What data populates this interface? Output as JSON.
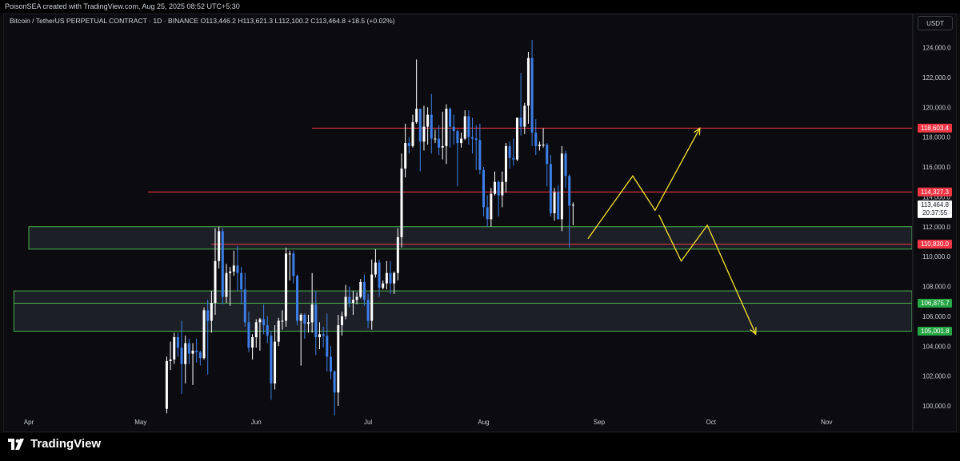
{
  "header": {
    "credit": "PoisonSEA created with TradingView.com, Aug 25, 2025 08:52 UTC+5:30",
    "symbol": "Bitcoin / TetherUS PERPETUAL CONTRACT · 1D · BINANCE",
    "ohlc": "O113,446.2 H113,621.3 L112,100.2 C113,464.8 +18.5 (+0.02%)",
    "currency": "USDT"
  },
  "brand": {
    "name": "TradingView"
  },
  "colors": {
    "up": "#ffffff",
    "down": "#3d7ee8",
    "resistance_line": "#f23645",
    "zone_border": "#4caf50",
    "zone_fill": "#23262f",
    "projection": "#f5e12c",
    "label_red": "#f23645",
    "label_green": "#26a644"
  },
  "chart_data": {
    "type": "candlestick",
    "title": "Bitcoin / TetherUS PERPETUAL CONTRACT · 1D · BINANCE",
    "x_ticks": [
      "Apr",
      "May",
      "Jun",
      "Jul",
      "Aug",
      "Sep",
      "Oct",
      "Nov"
    ],
    "y_ticks": [
      "100,000.0",
      "102,000.0",
      "104,000.0",
      "106,000.0",
      "108,000.0",
      "110,000.0",
      "112,000.0",
      "114,000.0",
      "116,000.0",
      "118,000.0",
      "120,000.0",
      "122,000.0",
      "124,000.0"
    ],
    "y_range": [
      99500,
      125700
    ],
    "price_labels": [
      {
        "text": "118,603.4",
        "value": 118603.4,
        "color": "red"
      },
      {
        "text": "114,327.3",
        "value": 114327.3,
        "color": "red"
      },
      {
        "text": "113,464.8",
        "value": 113464.8,
        "color": "white",
        "countdown": "20:37:55"
      },
      {
        "text": "110,830.0",
        "value": 110830.0,
        "color": "red"
      },
      {
        "text": "106,875.7",
        "value": 106875.7,
        "color": "green"
      },
      {
        "text": "105,001.8",
        "value": 105001.8,
        "color": "green"
      }
    ],
    "horizontal_lines": [
      {
        "value": 118603.4,
        "start_date": "2025-06-16"
      },
      {
        "value": 114327.3,
        "start_date": "2025-05-03"
      },
      {
        "value": 110830.0,
        "start_date": "2025-05-20"
      }
    ],
    "zones": [
      {
        "low": 110500,
        "high": 112000,
        "start_date": "2025-04-01"
      },
      {
        "low": 106875.7,
        "high": 107700,
        "start_date": "2025-03-28"
      },
      {
        "low": 105001.8,
        "high": 106875.7,
        "start_date": "2025-03-28"
      }
    ],
    "projection_path": [
      [
        "2025-08-29",
        111200
      ],
      [
        "2025-09-10",
        115400
      ],
      [
        "2025-09-16",
        113100
      ],
      [
        "2025-09-28",
        118600
      ]
    ],
    "projection_path_2": [
      [
        "2025-09-17",
        112800
      ],
      [
        "2025-09-23",
        109700
      ],
      [
        "2025-09-30",
        112100
      ],
      [
        "2025-10-13",
        104800
      ]
    ],
    "candles": [
      [
        "2025-05-08",
        99800,
        103300,
        99500,
        103000
      ],
      [
        "2025-05-09",
        103000,
        104300,
        102400,
        103100
      ],
      [
        "2025-05-10",
        103100,
        104900,
        102800,
        104600
      ],
      [
        "2025-05-11",
        104600,
        104900,
        103300,
        103900
      ],
      [
        "2025-05-12",
        103900,
        105700,
        100800,
        102800
      ],
      [
        "2025-05-13",
        102800,
        104700,
        101500,
        104200
      ],
      [
        "2025-05-14",
        104200,
        104500,
        102800,
        103500
      ],
      [
        "2025-05-15",
        103500,
        104200,
        101400,
        103700
      ],
      [
        "2025-05-16",
        103700,
        104500,
        102900,
        103600
      ],
      [
        "2025-05-17",
        103600,
        103700,
        102700,
        103200
      ],
      [
        "2025-05-18",
        103200,
        106600,
        103100,
        106400
      ],
      [
        "2025-05-19",
        106400,
        107100,
        102100,
        105700
      ],
      [
        "2025-05-20",
        105700,
        107700,
        104900,
        106900
      ],
      [
        "2025-05-21",
        106900,
        111900,
        106100,
        109700
      ],
      [
        "2025-05-22",
        109700,
        112000,
        109200,
        111700
      ],
      [
        "2025-05-23",
        111700,
        111900,
        106800,
        107300
      ],
      [
        "2025-05-24",
        107300,
        109500,
        106900,
        108900
      ],
      [
        "2025-05-25",
        108900,
        109300,
        106700,
        109000
      ],
      [
        "2025-05-26",
        109000,
        110400,
        108700,
        109400
      ],
      [
        "2025-05-27",
        109400,
        110700,
        107700,
        108900
      ],
      [
        "2025-05-28",
        108900,
        109300,
        106800,
        107800
      ],
      [
        "2025-05-29",
        107800,
        108900,
        105300,
        105600
      ],
      [
        "2025-05-30",
        105600,
        106300,
        103600,
        103900
      ],
      [
        "2025-05-31",
        103900,
        104800,
        103100,
        104600
      ],
      [
        "2025-06-01",
        104600,
        105800,
        103900,
        105600
      ],
      [
        "2025-06-02",
        105600,
        105900,
        103700,
        105800
      ],
      [
        "2025-06-03",
        105800,
        106800,
        104800,
        105400
      ],
      [
        "2025-06-04",
        105400,
        106000,
        104200,
        104700
      ],
      [
        "2025-06-05",
        104700,
        105000,
        100400,
        101500
      ],
      [
        "2025-06-06",
        101500,
        105400,
        101100,
        104300
      ],
      [
        "2025-06-07",
        104300,
        105900,
        104000,
        105700
      ],
      [
        "2025-06-08",
        105700,
        106400,
        105100,
        105700
      ],
      [
        "2025-06-09",
        105700,
        110600,
        105300,
        110200
      ],
      [
        "2025-06-10",
        110200,
        110400,
        108400,
        110200
      ],
      [
        "2025-06-11",
        110200,
        110400,
        108200,
        108700
      ],
      [
        "2025-06-12",
        108700,
        108800,
        105400,
        105700
      ],
      [
        "2025-06-13",
        105700,
        106200,
        102700,
        106100
      ],
      [
        "2025-06-14",
        106100,
        106200,
        104500,
        105500
      ],
      [
        "2025-06-15",
        105500,
        106100,
        104900,
        105600
      ],
      [
        "2025-06-16",
        105600,
        108900,
        104900,
        106800
      ],
      [
        "2025-06-17",
        106800,
        107700,
        103400,
        104600
      ],
      [
        "2025-06-18",
        104600,
        105600,
        103800,
        104800
      ],
      [
        "2025-06-19",
        104800,
        105300,
        103900,
        104700
      ],
      [
        "2025-06-20",
        104700,
        106200,
        102300,
        103300
      ],
      [
        "2025-06-21",
        103300,
        104000,
        101800,
        102300
      ],
      [
        "2025-06-22",
        102300,
        102400,
        98200,
        100900
      ],
      [
        "2025-06-23",
        100900,
        106100,
        100000,
        105400
      ],
      [
        "2025-06-24",
        105400,
        106300,
        104700,
        106000
      ],
      [
        "2025-06-25",
        106000,
        108100,
        105800,
        107300
      ],
      [
        "2025-06-26",
        107300,
        108000,
        106600,
        106900
      ],
      [
        "2025-06-27",
        106900,
        107700,
        106100,
        107100
      ],
      [
        "2025-06-28",
        107100,
        107600,
        106800,
        107300
      ],
      [
        "2025-06-29",
        107300,
        108500,
        107200,
        108300
      ],
      [
        "2025-06-30",
        108300,
        108800,
        106700,
        107100
      ],
      [
        "2025-07-01",
        107100,
        107500,
        105200,
        105700
      ],
      [
        "2025-07-02",
        105700,
        109800,
        105100,
        108800
      ],
      [
        "2025-07-03",
        108800,
        110500,
        108600,
        109600
      ],
      [
        "2025-07-04",
        109600,
        109800,
        107300,
        107900
      ],
      [
        "2025-07-05",
        107900,
        108400,
        107800,
        108200
      ],
      [
        "2025-07-06",
        108200,
        109700,
        107800,
        108900
      ],
      [
        "2025-07-07",
        108900,
        109700,
        107500,
        108200
      ],
      [
        "2025-07-08",
        108200,
        109000,
        107500,
        108900
      ],
      [
        "2025-07-09",
        108900,
        111900,
        108400,
        111300
      ],
      [
        "2025-07-10",
        111300,
        116900,
        110600,
        115900
      ],
      [
        "2025-07-11",
        115900,
        118900,
        115300,
        117600
      ],
      [
        "2025-07-12",
        117600,
        118000,
        116900,
        117400
      ],
      [
        "2025-07-13",
        117400,
        119500,
        117300,
        119000
      ],
      [
        "2025-07-14",
        119000,
        123200,
        118900,
        119900
      ],
      [
        "2025-07-15",
        119900,
        119900,
        115700,
        117700
      ],
      [
        "2025-07-16",
        117700,
        120100,
        117100,
        118700
      ],
      [
        "2025-07-17",
        118700,
        120000,
        117500,
        119500
      ],
      [
        "2025-07-18",
        119500,
        120900,
        116900,
        117900
      ],
      [
        "2025-07-19",
        117900,
        118500,
        117600,
        117900
      ],
      [
        "2025-07-20",
        117900,
        118800,
        116800,
        117300
      ],
      [
        "2025-07-21",
        117300,
        119700,
        116500,
        117400
      ],
      [
        "2025-07-22",
        117400,
        120200,
        116200,
        119900
      ],
      [
        "2025-07-23",
        119900,
        120000,
        117300,
        118700
      ],
      [
        "2025-07-24",
        118700,
        119500,
        117500,
        118400
      ],
      [
        "2025-07-25",
        118400,
        118500,
        114700,
        117600
      ],
      [
        "2025-07-26",
        117600,
        118300,
        117300,
        117900
      ],
      [
        "2025-07-27",
        117900,
        119800,
        117800,
        119400
      ],
      [
        "2025-07-28",
        119400,
        119800,
        117500,
        118000
      ],
      [
        "2025-07-29",
        118000,
        119300,
        116900,
        117900
      ],
      [
        "2025-07-30",
        117900,
        118800,
        115800,
        117800
      ],
      [
        "2025-07-31",
        117800,
        118900,
        115500,
        115800
      ],
      [
        "2025-08-01",
        115800,
        116000,
        112700,
        113300
      ],
      [
        "2025-08-02",
        113300,
        114100,
        112000,
        112500
      ],
      [
        "2025-08-03",
        112500,
        114600,
        112000,
        114200
      ],
      [
        "2025-08-04",
        114200,
        115700,
        114100,
        115000
      ],
      [
        "2025-08-05",
        115000,
        115100,
        112700,
        114100
      ],
      [
        "2025-08-06",
        114100,
        115700,
        113300,
        115000
      ],
      [
        "2025-08-07",
        115000,
        117600,
        114300,
        117400
      ],
      [
        "2025-08-08",
        117400,
        117700,
        115900,
        116600
      ],
      [
        "2025-08-09",
        116600,
        117900,
        116100,
        116500
      ],
      [
        "2025-08-10",
        116500,
        119300,
        116400,
        119300
      ],
      [
        "2025-08-11",
        119300,
        122300,
        118100,
        118700
      ],
      [
        "2025-08-12",
        118700,
        120300,
        118200,
        120100
      ],
      [
        "2025-08-13",
        120100,
        123700,
        118900,
        123300
      ],
      [
        "2025-08-14",
        123300,
        124500,
        117400,
        118300
      ],
      [
        "2025-08-15",
        118300,
        119200,
        116800,
        117400
      ],
      [
        "2025-08-16",
        117400,
        117700,
        117100,
        117500
      ],
      [
        "2025-08-17",
        117500,
        118600,
        117300,
        117500
      ],
      [
        "2025-08-18",
        117500,
        117600,
        114700,
        116200
      ],
      [
        "2025-08-19",
        116200,
        116800,
        112700,
        112900
      ],
      [
        "2025-08-20",
        112900,
        114600,
        112400,
        114300
      ],
      [
        "2025-08-21",
        114300,
        114800,
        112500,
        112500
      ],
      [
        "2025-08-22",
        112500,
        117400,
        111700,
        116900
      ],
      [
        "2025-08-23",
        116900,
        117100,
        114600,
        115400
      ],
      [
        "2025-08-24",
        115400,
        115500,
        110600,
        113400
      ],
      [
        "2025-08-25",
        113446.2,
        113621.3,
        112100.2,
        113464.8
      ]
    ]
  }
}
